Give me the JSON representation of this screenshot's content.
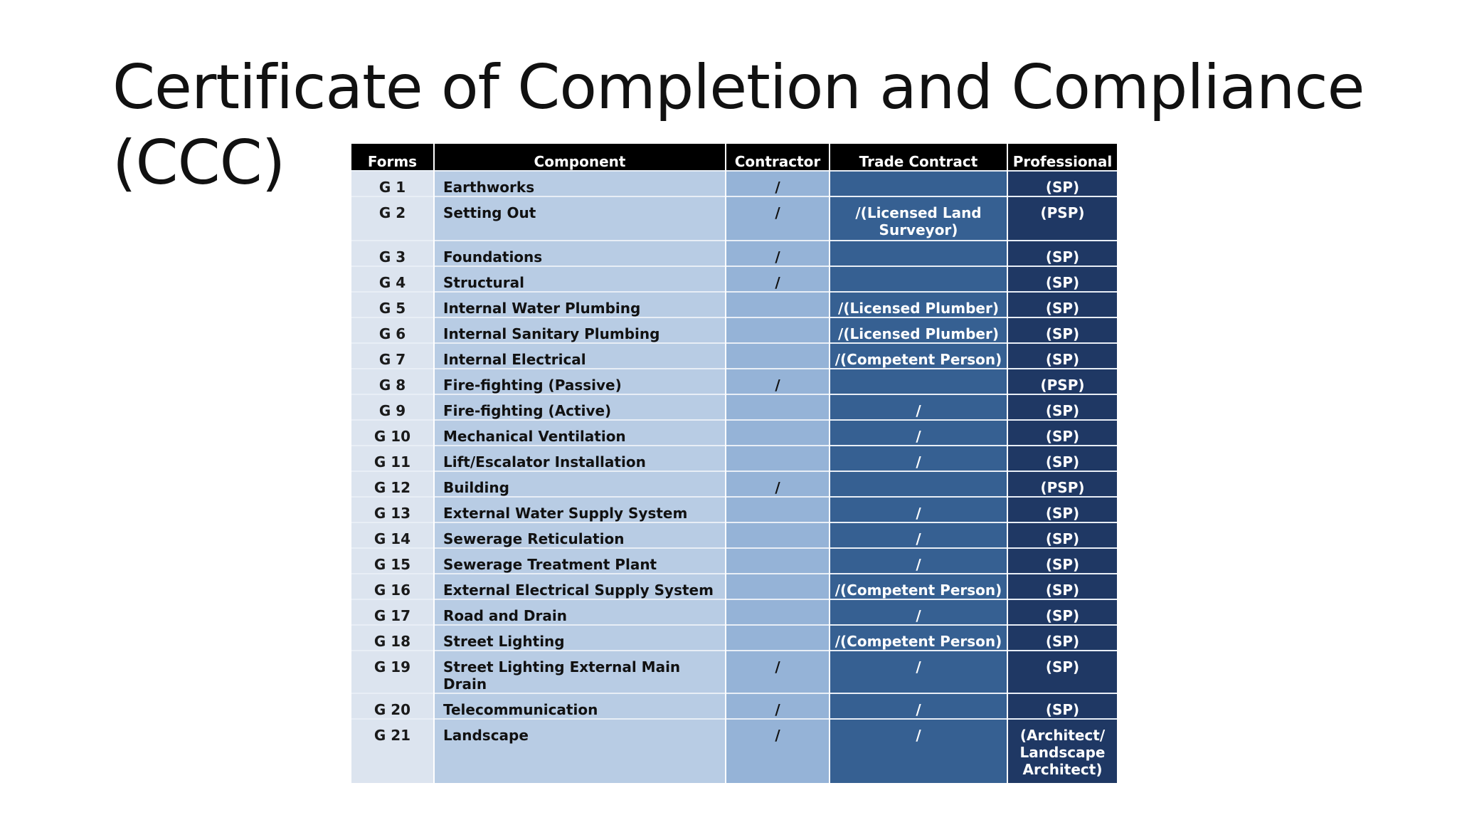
{
  "slide": {
    "title": "Certificate of Completion and Compliance (CCC)"
  },
  "table": {
    "headers": {
      "forms": "Forms",
      "component": "Component",
      "contractor": "Contractor",
      "trade_contract": "Trade Contract",
      "professional": "Professional"
    },
    "rows": [
      {
        "form": "G 1",
        "component": "Earthworks",
        "contractor": "/",
        "trade": "",
        "professional": "(SP)"
      },
      {
        "form": "G 2",
        "component": "Setting Out",
        "contractor": "/",
        "trade": "/(Licensed Land Surveyor)",
        "professional": "(PSP)"
      },
      {
        "form": "G 3",
        "component": "Foundations",
        "contractor": "/",
        "trade": "",
        "professional": "(SP)"
      },
      {
        "form": "G 4",
        "component": "Structural",
        "contractor": "/",
        "trade": "",
        "professional": "(SP)"
      },
      {
        "form": "G 5",
        "component": "Internal Water Plumbing",
        "contractor": "",
        "trade": "/(Licensed Plumber)",
        "professional": "(SP)"
      },
      {
        "form": "G 6",
        "component": "Internal Sanitary Plumbing",
        "contractor": "",
        "trade": "/(Licensed Plumber)",
        "professional": "(SP)"
      },
      {
        "form": "G 7",
        "component": "Internal Electrical",
        "contractor": "",
        "trade": "/(Competent Person)",
        "professional": "(SP)"
      },
      {
        "form": "G 8",
        "component": "Fire-fighting (Passive)",
        "contractor": "/",
        "trade": "",
        "professional": "(PSP)"
      },
      {
        "form": "G 9",
        "component": "Fire-fighting (Active)",
        "contractor": "",
        "trade": "/",
        "professional": "(SP)"
      },
      {
        "form": "G 10",
        "component": "Mechanical Ventilation",
        "contractor": "",
        "trade": "/",
        "professional": "(SP)"
      },
      {
        "form": "G 11",
        "component": "Lift/Escalator Installation",
        "contractor": "",
        "trade": "/",
        "professional": "(SP)"
      },
      {
        "form": "G 12",
        "component": "Building",
        "contractor": "/",
        "trade": "",
        "professional": "(PSP)"
      },
      {
        "form": "G 13",
        "component": "External Water Supply System",
        "contractor": "",
        "trade": "/",
        "professional": "(SP)"
      },
      {
        "form": "G 14",
        "component": "Sewerage Reticulation",
        "contractor": "",
        "trade": "/",
        "professional": "(SP)"
      },
      {
        "form": "G 15",
        "component": "Sewerage Treatment Plant",
        "contractor": "",
        "trade": "/",
        "professional": "(SP)"
      },
      {
        "form": "G 16",
        "component": "External Electrical Supply System",
        "contractor": "",
        "trade": "/(Competent Person)",
        "professional": "(SP)"
      },
      {
        "form": "G 17",
        "component": "Road and Drain",
        "contractor": "",
        "trade": "/",
        "professional": "(SP)"
      },
      {
        "form": "G 18",
        "component": "Street Lighting",
        "contractor": "",
        "trade": "/(Competent Person)",
        "professional": "(SP)"
      },
      {
        "form": "G 19",
        "component": "Street Lighting External Main Drain",
        "contractor": "/",
        "trade": "/",
        "professional": "(SP)"
      },
      {
        "form": "G 20",
        "component": "Telecommunication",
        "contractor": "/",
        "trade": "/",
        "professional": "(SP)"
      },
      {
        "form": "G 21",
        "component": "Landscape",
        "contractor": "/",
        "trade": "/",
        "professional": "(Architect/ Landscape Architect)"
      }
    ]
  }
}
